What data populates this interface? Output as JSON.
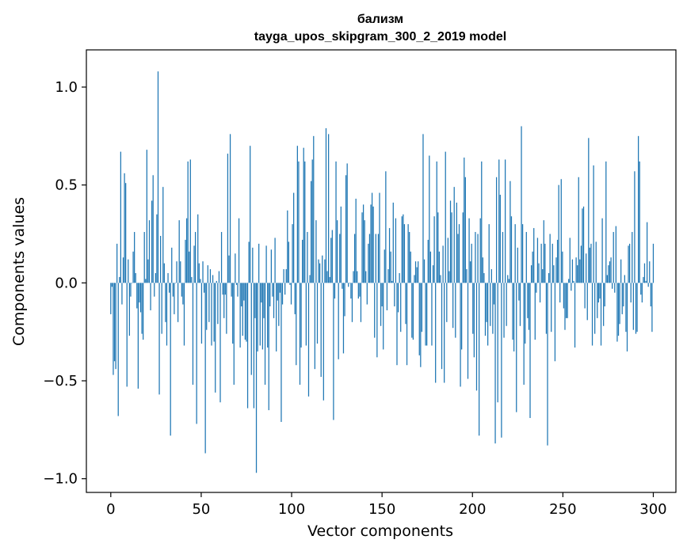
{
  "chart_data": {
    "type": "bar",
    "title": "бализм",
    "subtitle": "tayga_upos_skipgram_300_2_2019 model",
    "xlabel": "Vector components",
    "ylabel": "Components values",
    "xlim": [
      -13.5,
      312.5
    ],
    "ylim": [
      -1.07,
      1.19
    ],
    "xticks": [
      0,
      50,
      100,
      150,
      200,
      250,
      300
    ],
    "yticks": [
      -1.0,
      -0.5,
      0.0,
      0.5,
      1.0
    ],
    "xtick_labels": [
      "0",
      "50",
      "100",
      "150",
      "200",
      "250",
      "300"
    ],
    "ytick_labels": [
      "−1.0",
      "−0.5",
      "0.0",
      "0.5",
      "1.0"
    ],
    "bar_color": "#1f77b4",
    "values": [
      -0.16,
      -0.02,
      -0.47,
      -0.4,
      -0.44,
      0.2,
      -0.68,
      0.03,
      0.67,
      -0.11,
      0.13,
      0.56,
      0.51,
      -0.53,
      0.12,
      -0.27,
      -0.07,
      0.0,
      0.16,
      0.26,
      0.05,
      -0.13,
      -0.54,
      -0.1,
      -0.15,
      -0.26,
      -0.29,
      0.26,
      0.02,
      0.68,
      0.12,
      0.32,
      -0.14,
      0.42,
      0.55,
      -0.07,
      0.05,
      0.35,
      1.08,
      -0.57,
      0.24,
      -0.26,
      0.49,
      0.1,
      -0.2,
      -0.32,
      0.05,
      -0.05,
      -0.78,
      0.18,
      -0.07,
      -0.16,
      0.0,
      0.11,
      -0.2,
      0.32,
      0.11,
      -0.07,
      -0.11,
      -0.32,
      0.22,
      0.33,
      0.62,
      0.16,
      0.63,
      0.03,
      -0.52,
      0.19,
      0.26,
      -0.72,
      0.35,
      0.1,
      0.02,
      -0.31,
      0.11,
      -0.05,
      -0.87,
      -0.24,
      0.09,
      -0.2,
      0.07,
      -0.32,
      0.04,
      -0.3,
      -0.56,
      0.01,
      -0.21,
      0.06,
      -0.61,
      0.26,
      -0.06,
      -0.18,
      -0.06,
      -0.26,
      0.66,
      0.14,
      0.76,
      -0.07,
      -0.31,
      -0.52,
      0.15,
      -0.01,
      -0.07,
      0.33,
      -0.33,
      -0.12,
      -0.27,
      -0.09,
      -0.29,
      -0.3,
      -0.64,
      0.21,
      0.7,
      -0.47,
      0.18,
      -0.64,
      -0.18,
      -0.97,
      -0.35,
      0.2,
      -0.32,
      -0.1,
      -0.34,
      -0.18,
      -0.52,
      0.19,
      -0.33,
      -0.65,
      -0.12,
      0.17,
      -0.07,
      -0.18,
      0.23,
      -0.35,
      -0.09,
      -0.22,
      -0.05,
      -0.71,
      -0.11,
      0.07,
      -0.06,
      0.07,
      0.37,
      0.21,
      -0.01,
      -0.11,
      0.3,
      0.46,
      -0.16,
      -0.42,
      0.7,
      0.62,
      -0.52,
      -0.33,
      0.22,
      0.69,
      0.62,
      -0.32,
      0.26,
      -0.58,
      0.04,
      0.52,
      0.63,
      0.75,
      -0.44,
      0.32,
      -0.31,
      0.12,
      0.1,
      -0.48,
      0.14,
      -0.6,
      0.12,
      0.79,
      0.06,
      0.76,
      0.03,
      0.23,
      0.27,
      -0.7,
      -0.08,
      0.62,
      0.32,
      -0.39,
      0.25,
      0.39,
      -0.03,
      -0.36,
      -0.17,
      0.55,
      0.61,
      -0.02,
      0.0,
      -0.08,
      -0.2,
      0.06,
      0.25,
      0.43,
      0.06,
      -0.08,
      -0.07,
      -0.2,
      0.36,
      0.4,
      0.32,
      0.06,
      -0.11,
      0.2,
      0.25,
      0.4,
      0.46,
      0.39,
      -0.28,
      0.25,
      -0.38,
      0.25,
      0.46,
      -0.22,
      -0.12,
      -0.34,
      0.17,
      0.57,
      -0.14,
      0.07,
      0.28,
      0.16,
      0.01,
      0.41,
      -0.12,
      0.33,
      -0.42,
      -0.15,
      0.05,
      -0.25,
      0.34,
      0.35,
      0.3,
      -0.21,
      -0.42,
      0.3,
      0.26,
      0.16,
      -0.28,
      -0.29,
      0.04,
      0.11,
      0.08,
      0.11,
      -0.37,
      -0.43,
      -0.25,
      0.76,
      0.12,
      -0.32,
      -0.32,
      0.22,
      0.65,
      0.16,
      -0.32,
      0.09,
      0.34,
      -0.51,
      0.62,
      0.36,
      0.16,
      0.04,
      -0.44,
      0.19,
      -0.51,
      0.67,
      -0.2,
      0.23,
      0.06,
      0.42,
      0.36,
      -0.23,
      0.49,
      -0.28,
      0.41,
      0.25,
      0.3,
      -0.53,
      -0.34,
      0.36,
      0.64,
      0.54,
      0.07,
      -0.49,
      0.33,
      0.11,
      0.2,
      -0.26,
      -0.38,
      0.26,
      -0.55,
      0.25,
      -0.78,
      0.33,
      0.62,
      0.13,
      0.05,
      -0.27,
      -0.2,
      -0.32,
      0.3,
      -0.22,
      0.07,
      -0.26,
      -0.11,
      -0.82,
      0.54,
      -0.61,
      0.63,
      0.45,
      -0.79,
      0.26,
      -0.28,
      0.63,
      -0.22,
      0.04,
      0.02,
      0.52,
      0.34,
      -0.29,
      -0.35,
      0.3,
      -0.66,
      0.18,
      -0.09,
      -0.22,
      0.8,
      0.3,
      -0.52,
      -0.31,
      0.26,
      -0.18,
      -0.24,
      -0.69,
      0.09,
      0.16,
      0.28,
      -0.29,
      -0.05,
      0.23,
      0.1,
      -0.1,
      0.2,
      0.07,
      0.32,
      0.2,
      -0.26,
      -0.83,
      0.05,
      0.25,
      -0.25,
      0.2,
      0.09,
      -0.4,
      0.13,
      0.22,
      0.5,
      -0.1,
      0.53,
      0.16,
      -0.13,
      -0.24,
      -0.18,
      -0.18,
      0.02,
      0.23,
      -0.04,
      0.12,
      0.01,
      -0.33,
      0.13,
      0.09,
      0.54,
      0.12,
      0.19,
      0.38,
      0.39,
      -0.13,
      0.15,
      -0.19,
      0.74,
      0.18,
      0.2,
      -0.32,
      0.6,
      -0.26,
      0.21,
      -0.18,
      -0.1,
      -0.08,
      -0.32,
      0.33,
      -0.22,
      -0.12,
      0.62,
      0.04,
      0.09,
      0.11,
      0.13,
      -0.03,
      0.26,
      -0.05,
      0.29,
      -0.3,
      -0.27,
      -0.21,
      0.12,
      -0.16,
      -0.12,
      0.04,
      -0.25,
      -0.35,
      0.19,
      0.2,
      -0.1,
      0.26,
      -0.24,
      0.57,
      -0.26,
      -0.25,
      0.75,
      0.62,
      -0.06,
      -0.1,
      0.03,
      0.1,
      0.01,
      0.31,
      -0.02,
      0.11,
      -0.12,
      -0.25,
      0.2
    ]
  }
}
